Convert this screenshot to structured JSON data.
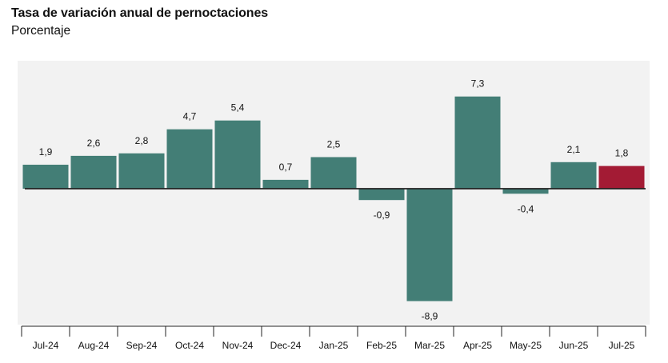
{
  "title": "Tasa de variación anual de pernoctaciones",
  "subtitle": "Porcentaje",
  "colors": {
    "bar": "#437e76",
    "highlight": "#a31b34",
    "plot_background": "#f2f2f2",
    "zero_line": "#222222"
  },
  "value_labels": [
    "1,9",
    "2,6",
    "2,8",
    "4,7",
    "5,4",
    "0,7",
    "2,5",
    "-0,9",
    "-8,9",
    "7,3",
    "-0,4",
    "2,1",
    "1,8"
  ],
  "chart_data": {
    "type": "bar",
    "title": "Tasa de variación anual de pernoctaciones",
    "subtitle": "Porcentaje",
    "categories": [
      "Jul-24",
      "Aug-24",
      "Sep-24",
      "Oct-24",
      "Nov-24",
      "Dec-24",
      "Jan-25",
      "Feb-25",
      "Mar-25",
      "Apr-25",
      "May-25",
      "Jun-25",
      "Jul-25"
    ],
    "values": [
      1.9,
      2.6,
      2.8,
      4.7,
      5.4,
      0.7,
      2.5,
      -0.9,
      -8.9,
      7.3,
      -0.4,
      2.1,
      1.8
    ],
    "highlighted_category": "Jul-25",
    "xlabel": "",
    "ylabel": "",
    "grid": false,
    "legend": "none"
  }
}
